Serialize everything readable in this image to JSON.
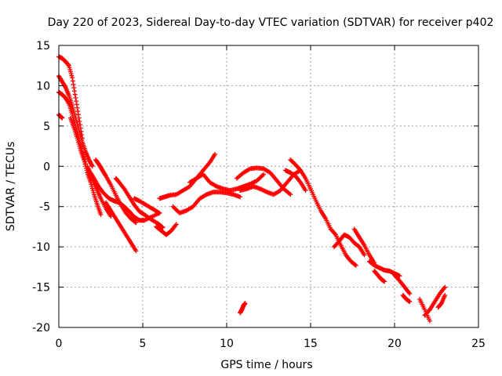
{
  "chart_data": {
    "type": "scatter",
    "title": "Day 220 of 2023, Sidereal Day-to-day VTEC variation (SDTVAR) for receiver p402",
    "xlabel": "GPS time / hours",
    "ylabel": "SDTVAR / TECUs",
    "xlim": [
      0,
      25
    ],
    "ylim": [
      -20,
      15
    ],
    "xticks": [
      0,
      5,
      10,
      15,
      20,
      25
    ],
    "yticks": [
      -20,
      -15,
      -10,
      -5,
      0,
      5,
      10,
      15
    ],
    "grid": true,
    "marker": "+",
    "color": "#ff0000",
    "series": [
      {
        "name": "trace-1",
        "x": [
          0.0,
          0.2,
          0.4,
          0.6,
          0.8,
          1.0,
          1.2,
          1.4
        ],
        "y": [
          13.6,
          13.4,
          13.0,
          12.5,
          11.0,
          8.5,
          6.0,
          3.5
        ]
      },
      {
        "name": "trace-2",
        "x": [
          0.0,
          0.2,
          0.4,
          0.6,
          0.8,
          1.0,
          1.2,
          1.4,
          1.6,
          1.8,
          2.0
        ],
        "y": [
          11.2,
          10.5,
          9.8,
          8.8,
          7.5,
          6.0,
          4.5,
          3.0,
          1.8,
          0.8,
          0.0
        ]
      },
      {
        "name": "trace-3",
        "x": [
          0.0,
          0.2,
          0.4,
          0.6,
          0.8,
          1.0,
          1.2,
          1.4,
          1.6
        ],
        "y": [
          9.2,
          8.9,
          8.5,
          7.8,
          6.5,
          5.0,
          3.5,
          2.0,
          0.3
        ]
      },
      {
        "name": "trace-4",
        "x": [
          0.0,
          0.1,
          0.2
        ],
        "y": [
          6.4,
          6.2,
          6.0
        ]
      },
      {
        "name": "trace-5",
        "x": [
          0.7,
          0.9,
          1.1,
          1.3,
          1.5,
          1.7,
          1.9,
          2.1,
          2.3,
          2.5
        ],
        "y": [
          6.0,
          4.8,
          3.5,
          2.0,
          0.8,
          -0.8,
          -2.0,
          -3.5,
          -4.8,
          -6.0
        ]
      },
      {
        "name": "trace-6",
        "x": [
          1.7,
          1.9,
          2.1,
          2.3,
          2.5,
          2.8,
          3.1
        ],
        "y": [
          0.0,
          -1.0,
          -2.0,
          -3.0,
          -4.0,
          -5.2,
          -6.2
        ]
      },
      {
        "name": "trace-7",
        "x": [
          2.2,
          2.4,
          2.6,
          2.8,
          3.1,
          3.4,
          3.7,
          4.0,
          4.3,
          4.6
        ],
        "y": [
          0.8,
          0.2,
          -0.5,
          -1.2,
          -2.3,
          -3.6,
          -4.8,
          -5.8,
          -6.5,
          -7.0
        ]
      },
      {
        "name": "trace-8",
        "x": [
          1.8,
          2.1,
          2.4,
          2.7,
          3.0,
          3.3,
          3.6,
          3.9,
          4.2,
          4.5,
          4.8,
          5.1,
          5.5,
          6.0
        ],
        "y": [
          -0.5,
          -1.5,
          -2.6,
          -3.4,
          -4.0,
          -4.3,
          -4.5,
          -5.0,
          -5.6,
          -6.3,
          -6.7,
          -6.7,
          -6.3,
          -5.8
        ]
      },
      {
        "name": "trace-9",
        "x": [
          3.4,
          3.6,
          3.9,
          4.2,
          4.5,
          4.8,
          5.1,
          5.5,
          5.9,
          6.2
        ],
        "y": [
          -1.5,
          -2.0,
          -2.8,
          -3.8,
          -4.8,
          -5.6,
          -6.0,
          -6.6,
          -7.1,
          -7.6
        ]
      },
      {
        "name": "trace-10",
        "x": [
          2.8,
          3.1,
          3.4,
          3.7,
          4.0,
          4.3,
          4.6
        ],
        "y": [
          -4.5,
          -5.5,
          -6.5,
          -7.5,
          -8.5,
          -9.5,
          -10.5
        ]
      },
      {
        "name": "trace-11",
        "x": [
          4.5,
          4.8,
          5.2,
          5.6,
          6.0
        ],
        "y": [
          -4.0,
          -4.3,
          -4.8,
          -5.3,
          -5.8
        ]
      },
      {
        "name": "trace-12",
        "x": [
          5.8,
          6.1,
          6.4,
          6.7,
          7.0
        ],
        "y": [
          -7.5,
          -8.0,
          -8.5,
          -8.0,
          -7.2
        ]
      },
      {
        "name": "trace-13",
        "x": [
          6.0,
          6.3,
          6.6,
          7.0,
          7.4,
          7.8,
          8.2,
          8.6,
          9.0,
          9.3
        ],
        "y": [
          -4.0,
          -3.8,
          -3.6,
          -3.5,
          -3.0,
          -2.5,
          -1.5,
          -0.5,
          0.5,
          1.5
        ]
      },
      {
        "name": "trace-14",
        "x": [
          6.8,
          7.2,
          7.6,
          8.0,
          8.4,
          8.8,
          9.2,
          9.6,
          10.0,
          10.4,
          10.8
        ],
        "y": [
          -5.0,
          -5.8,
          -5.5,
          -5.0,
          -4.0,
          -3.5,
          -3.2,
          -3.2,
          -3.3,
          -3.5,
          -3.8
        ]
      },
      {
        "name": "trace-15",
        "x": [
          7.8,
          8.2,
          8.6,
          9.0,
          9.4,
          9.8,
          10.2,
          10.6,
          11.0,
          11.4,
          11.8,
          12.2
        ],
        "y": [
          -2.0,
          -1.5,
          -1.0,
          -2.0,
          -2.5,
          -2.8,
          -3.0,
          -2.8,
          -2.5,
          -2.2,
          -1.8,
          -1.0
        ]
      },
      {
        "name": "trace-16",
        "x": [
          10.6,
          11.0,
          11.4,
          11.8,
          12.2,
          12.6,
          13.0,
          13.4,
          13.8
        ],
        "y": [
          -1.5,
          -0.8,
          -0.3,
          -0.2,
          -0.3,
          -0.8,
          -1.8,
          -2.8,
          -3.5
        ]
      },
      {
        "name": "trace-17",
        "x": [
          10.8,
          11.2,
          11.6,
          12.0,
          12.4,
          12.8,
          13.2,
          13.6,
          14.0,
          14.4
        ],
        "y": [
          -3.0,
          -2.8,
          -2.5,
          -2.8,
          -3.2,
          -3.5,
          -3.0,
          -2.0,
          -1.0,
          -0.5
        ]
      },
      {
        "name": "trace-18",
        "x": [
          13.8,
          14.1,
          14.4,
          14.7,
          15.0,
          15.3,
          15.6,
          15.9,
          16.2
        ],
        "y": [
          0.8,
          0.2,
          -0.5,
          -1.5,
          -2.8,
          -4.2,
          -5.5,
          -6.5,
          -7.8
        ]
      },
      {
        "name": "trace-19",
        "x": [
          13.5,
          13.8,
          14.1,
          14.4,
          14.7
        ],
        "y": [
          -0.5,
          -0.8,
          -1.2,
          -2.0,
          -3.0
        ]
      },
      {
        "name": "trace-20",
        "x": [
          10.8,
          10.9,
          11.0,
          11.1
        ],
        "y": [
          -18.2,
          -17.8,
          -17.3,
          -17.0
        ]
      },
      {
        "name": "trace-21",
        "x": [
          16.2,
          16.5,
          16.8,
          17.1,
          17.4,
          17.7
        ],
        "y": [
          -7.8,
          -8.5,
          -9.8,
          -11.0,
          -11.8,
          -12.3
        ]
      },
      {
        "name": "trace-22",
        "x": [
          16.4,
          16.7,
          17.0,
          17.3,
          17.6,
          17.9,
          18.2
        ],
        "y": [
          -10.0,
          -9.3,
          -8.5,
          -8.8,
          -9.5,
          -10.0,
          -11.0
        ]
      },
      {
        "name": "trace-23",
        "x": [
          17.6,
          17.9,
          18.2,
          18.5,
          18.8
        ],
        "y": [
          -7.8,
          -8.8,
          -9.8,
          -11.0,
          -12.0
        ]
      },
      {
        "name": "trace-24",
        "x": [
          18.5,
          18.8,
          19.1,
          19.4,
          19.7,
          20.0,
          20.3
        ],
        "y": [
          -11.8,
          -12.3,
          -12.6,
          -12.9,
          -13.0,
          -13.3,
          -13.6
        ]
      },
      {
        "name": "trace-25",
        "x": [
          18.8,
          19.0,
          19.2,
          19.4
        ],
        "y": [
          -13.0,
          -13.5,
          -14.0,
          -14.3
        ]
      },
      {
        "name": "trace-26",
        "x": [
          20.0,
          20.3,
          20.6,
          20.9
        ],
        "y": [
          -13.5,
          -14.2,
          -15.0,
          -15.8
        ]
      },
      {
        "name": "trace-27",
        "x": [
          20.5,
          20.7,
          20.9
        ],
        "y": [
          -16.0,
          -16.5,
          -16.8
        ]
      },
      {
        "name": "trace-28",
        "x": [
          21.8,
          22.1,
          22.4,
          22.7,
          23.0
        ],
        "y": [
          -18.5,
          -17.8,
          -16.8,
          -15.8,
          -15.0
        ]
      },
      {
        "name": "trace-29",
        "x": [
          21.5,
          21.8,
          22.1
        ],
        "y": [
          -16.5,
          -17.8,
          -19.2
        ]
      },
      {
        "name": "trace-30",
        "x": [
          22.6,
          22.8,
          23.0
        ],
        "y": [
          -17.5,
          -17.0,
          -16.0
        ]
      }
    ]
  }
}
